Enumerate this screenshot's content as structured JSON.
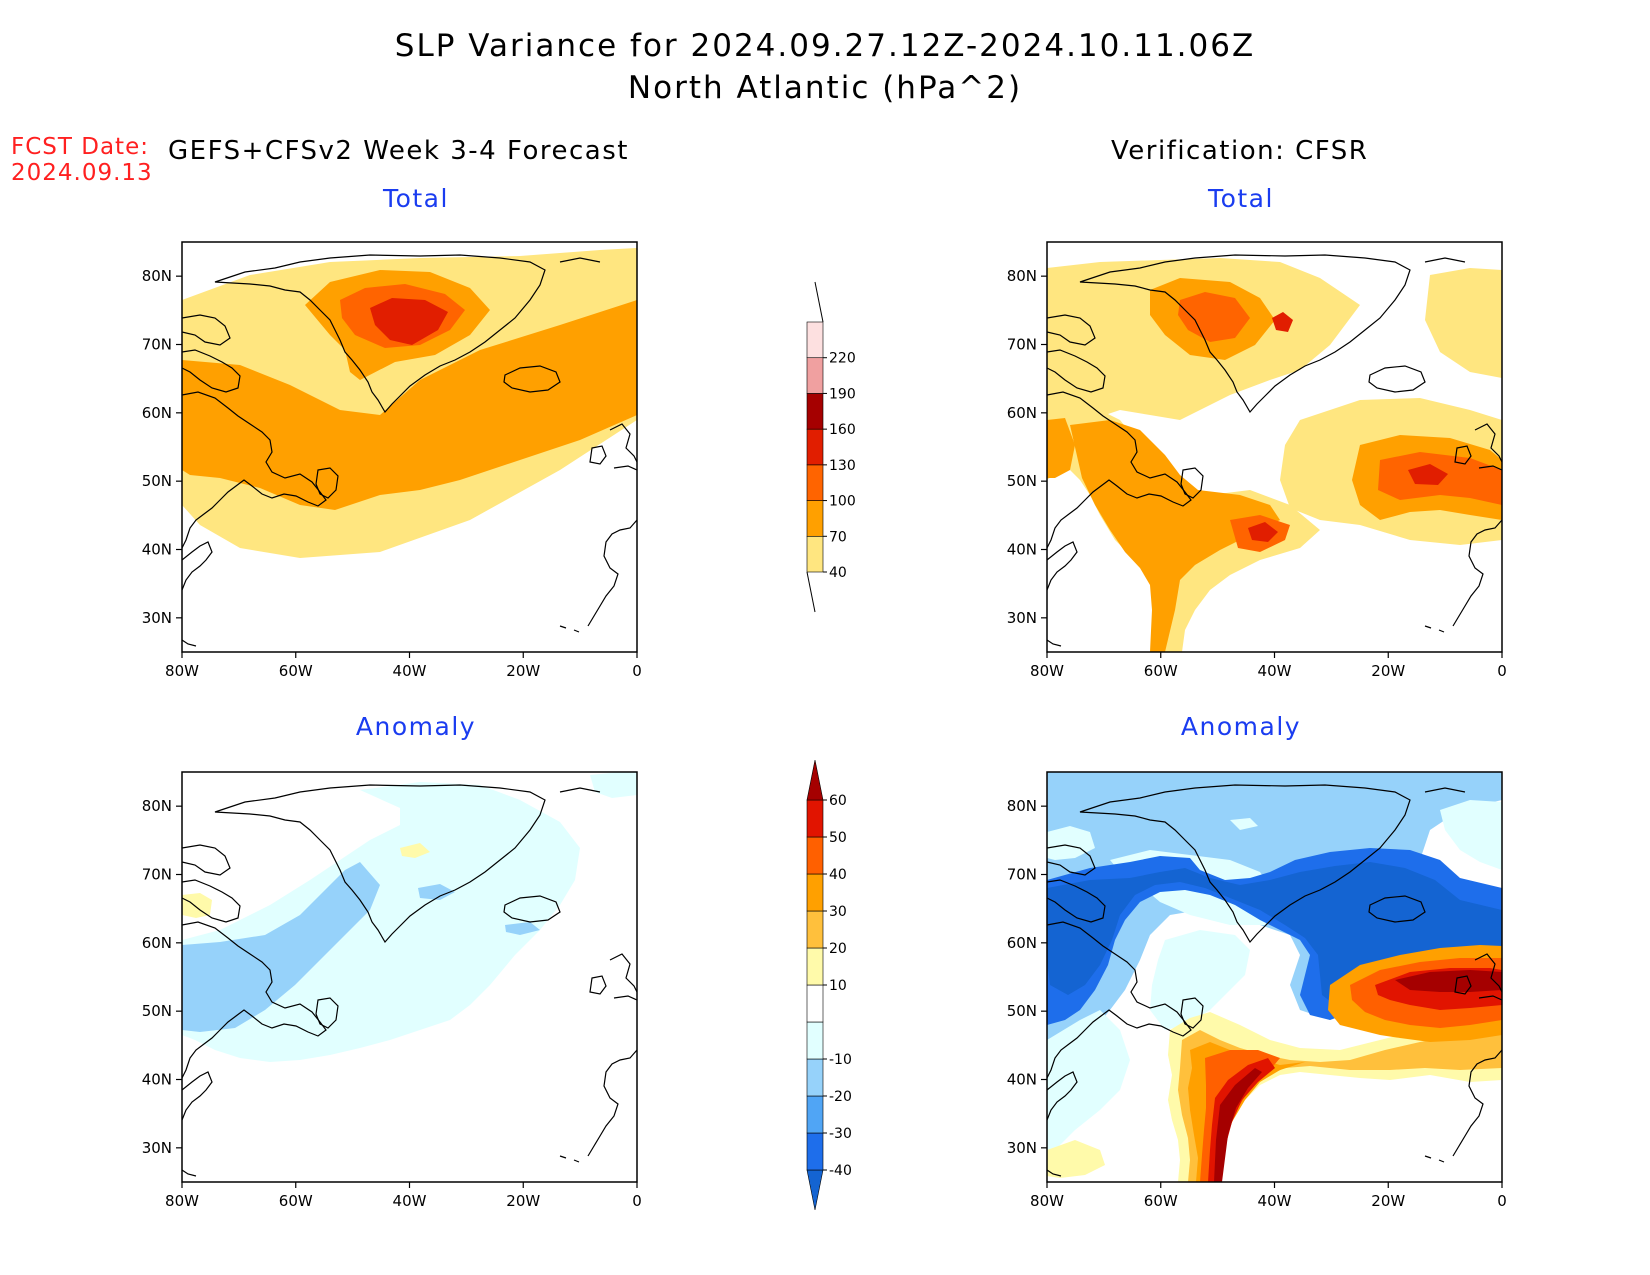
{
  "header": {
    "title_line1": "SLP Variance for 2024.09.27.12Z-2024.10.11.06Z",
    "title_line2": "North Atlantic (hPa^2)"
  },
  "forecast_date": {
    "label": "FCST Date:",
    "value": "2024.09.13"
  },
  "columns": {
    "left": "GEFS+CFSv2 Week 3-4 Forecast",
    "right": "Verification: CFSR"
  },
  "panels": [
    {
      "id": "fcst-total",
      "title": "Total"
    },
    {
      "id": "verif-total",
      "title": "Total"
    },
    {
      "id": "fcst-anomaly",
      "title": "Anomaly"
    },
    {
      "id": "verif-anomaly",
      "title": "Anomaly"
    }
  ],
  "axes": {
    "lat_labels": [
      "80N",
      "70N",
      "60N",
      "50N",
      "40N",
      "30N"
    ],
    "lat_values": [
      80,
      70,
      60,
      50,
      40,
      30
    ],
    "lon_labels": [
      "80W",
      "60W",
      "40W",
      "20W",
      "0"
    ],
    "lon_values": [
      -80,
      -60,
      -40,
      -20,
      0
    ],
    "lat_range": [
      25,
      85
    ],
    "lon_range": [
      -80,
      0
    ]
  },
  "colorbars": {
    "total": {
      "labels": [
        "40",
        "70",
        "100",
        "130",
        "160",
        "190",
        "220"
      ],
      "colors": [
        "#ffe680",
        "#ffa000",
        "#ff6400",
        "#e11e00",
        "#a50000",
        "#f0a0a0",
        "#fde0e0"
      ]
    },
    "anomaly": {
      "labels": [
        "-40",
        "-30",
        "-20",
        "-10",
        "10",
        "20",
        "30",
        "40",
        "50",
        "60"
      ],
      "colors": [
        "#1464d2",
        "#1e6eeb",
        "#50a5f5",
        "#96d2fa",
        "#e1ffff",
        "#ffffff",
        "#fffaaa",
        "#ffc03c",
        "#ffa000",
        "#ff6000",
        "#e11400",
        "#a50000"
      ]
    }
  }
}
